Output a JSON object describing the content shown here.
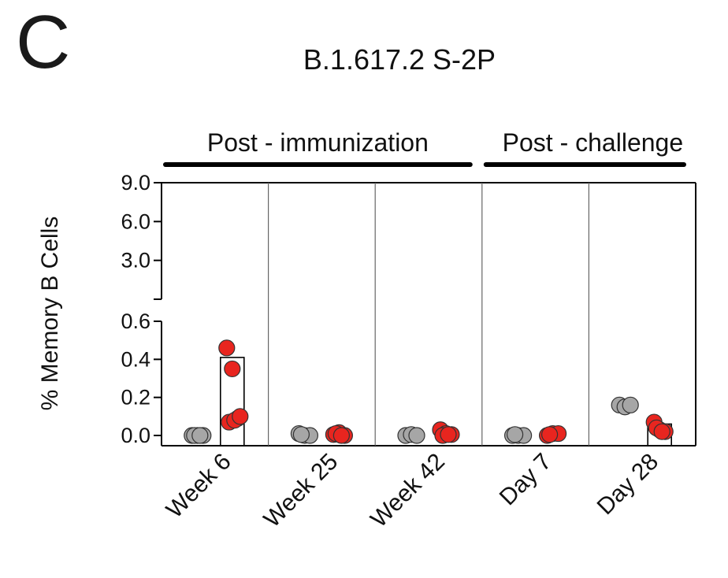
{
  "panel_letter": "C",
  "chart_data": {
    "type": "scatter",
    "title": "B.1.617.2 S-2P",
    "ylabel": "% Memory B Cells",
    "xlabel": "",
    "categories": [
      "Week 6",
      "Week 25",
      "Week 42",
      "Day 7",
      "Day 28"
    ],
    "groups": [
      {
        "label": "Post - immunization",
        "categories": [
          "Week 6",
          "Week 25",
          "Week 42"
        ]
      },
      {
        "label": "Post - challenge",
        "categories": [
          "Day 7",
          "Day 28"
        ]
      }
    ],
    "yaxis": {
      "broken": true,
      "lower_range": [
        0,
        0.6
      ],
      "lower_ticks": [
        "0.0",
        "0.2",
        "0.4",
        "0.6"
      ],
      "upper_range": [
        0,
        9.0
      ],
      "upper_ticks": [
        "3.0",
        "6.0",
        "9.0"
      ]
    },
    "series": [
      {
        "color": "#a6a6a6",
        "values": [
          [
            0.0,
            0.0,
            0.0,
            0.0,
            0.0
          ],
          [
            0.01,
            0.0,
            0.0,
            0.005
          ],
          [
            0.0,
            0.005,
            0.0
          ],
          [
            0.0,
            0.0,
            0.0,
            0.005
          ],
          [
            0.16,
            0.15,
            0.16
          ]
        ]
      },
      {
        "color": "#e8251f",
        "values": [
          [
            0.46,
            0.35,
            0.09,
            0.07,
            0.08,
            0.1
          ],
          [
            0.005,
            0.015,
            0.0,
            0.01,
            0.0
          ],
          [
            0.03,
            0.01,
            0.005,
            0.0,
            0.005
          ],
          [
            0.0,
            0.01,
            0.01,
            0.005
          ],
          [
            0.07,
            0.03,
            0.02,
            0.04,
            0.02
          ]
        ],
        "box_heights": [
          0.41,
          null,
          null,
          null,
          0.06
        ]
      }
    ]
  }
}
